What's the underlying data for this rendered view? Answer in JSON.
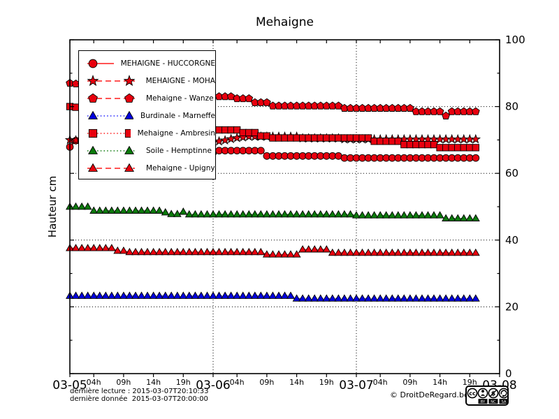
{
  "title": "Mehaigne",
  "ylabel": "Hauteur cm",
  "axis": {
    "ylim": [
      0,
      100
    ],
    "y_major_ticks": [
      0,
      20,
      40,
      60,
      80,
      100
    ],
    "y_minor_ticks": [
      10,
      30,
      50,
      70,
      90
    ],
    "grid_h_values": [
      20,
      40,
      60,
      80
    ],
    "grid_v_hours": [
      24,
      48
    ],
    "x_day_ticks": [
      {
        "hour": 0,
        "label": "03-05"
      },
      {
        "hour": 24,
        "label": "03-06"
      },
      {
        "hour": 48,
        "label": "03-07"
      },
      {
        "hour": 72,
        "label": "03-08"
      }
    ],
    "x_hour_ticks": [
      {
        "hour": 4,
        "label": "04h"
      },
      {
        "hour": 9,
        "label": "09h"
      },
      {
        "hour": 14,
        "label": "14h"
      },
      {
        "hour": 19,
        "label": "19h"
      },
      {
        "hour": 28,
        "label": "04h"
      },
      {
        "hour": 33,
        "label": "09h"
      },
      {
        "hour": 38,
        "label": "14h"
      },
      {
        "hour": 43,
        "label": "19h"
      },
      {
        "hour": 52,
        "label": "04h"
      },
      {
        "hour": 57,
        "label": "09h"
      },
      {
        "hour": 62,
        "label": "14h"
      },
      {
        "hour": 67,
        "label": "19h"
      }
    ]
  },
  "legend": {
    "position": "upper-left"
  },
  "chart_data": {
    "type": "line",
    "title": "Mehaigne",
    "xlabel": "",
    "ylabel": "Hauteur cm",
    "x_unit": "hours since 2015-03-05 00:00",
    "x_range_hours": [
      0,
      72
    ],
    "ylim": [
      0,
      100
    ],
    "grid": "dotted",
    "series": [
      {
        "name": "MEHAIGNE - HUCCORGNE",
        "marker": "circle",
        "linestyle": "solid",
        "color": "#e8000e",
        "line_color": "#ff1a1a",
        "values": [
          67.9,
          69.8,
          69.6,
          69.5,
          69.3,
          69.2,
          69.0,
          68.9,
          68.7,
          68.6,
          68.4,
          68.3,
          68.1,
          68.0,
          67.9,
          67.8,
          67.7,
          67.6,
          67.5,
          67.4,
          67.3,
          67.2,
          67.1,
          67.0,
          66.2,
          66.8,
          66.8,
          66.8,
          66.8,
          66.8,
          66.8,
          66.8,
          66.8,
          65.2,
          65.2,
          65.2,
          65.2,
          65.2,
          65.2,
          65.2,
          65.2,
          65.2,
          65.2,
          65.2,
          65.2,
          65.2,
          64.6,
          64.6,
          64.6,
          64.6,
          64.6,
          64.6,
          64.6,
          64.6,
          64.6,
          64.6,
          64.6,
          64.6,
          64.6,
          64.6,
          64.6,
          64.6,
          64.6,
          64.6,
          64.6,
          64.6,
          64.6,
          64.6,
          64.6
        ]
      },
      {
        "name": "MEHAIGNE - MOHA",
        "marker": "star",
        "linestyle": "dashed",
        "color": "#e8000e",
        "line_color": "#ff1a1a",
        "values": [
          70.0,
          69.9,
          69.8,
          69.8,
          69.7,
          69.6,
          69.6,
          69.5,
          69.4,
          69.4,
          69.3,
          69.3,
          69.2,
          69.2,
          69.1,
          69.1,
          69.0,
          69.0,
          68.9,
          68.9,
          68.9,
          68.8,
          68.8,
          68.8,
          69.3,
          69.6,
          69.9,
          70.3,
          70.6,
          70.8,
          71.0,
          71.0,
          71.0,
          71.0,
          71.0,
          71.0,
          71.0,
          71.0,
          71.0,
          70.5,
          70.5,
          70.5,
          70.5,
          70.5,
          70.5,
          70.5,
          70.2,
          70.2,
          70.2,
          70.2,
          70.2,
          70.2,
          70.2,
          70.2,
          70.2,
          70.2,
          70.2,
          70.2,
          70.2,
          70.2,
          70.2,
          70.2,
          70.2,
          70.2,
          70.2,
          70.2,
          70.2,
          70.2,
          70.2
        ]
      },
      {
        "name": "Mehaigne - Wanze",
        "marker": "pentagon",
        "linestyle": "dashed",
        "color": "#e8000e",
        "line_color": "#ff1a1a",
        "values": [
          87.0,
          86.8,
          86.6,
          86.4,
          86.2,
          86.0,
          85.8,
          85.6,
          85.4,
          85.2,
          85.0,
          84.9,
          84.7,
          84.6,
          84.4,
          84.3,
          84.2,
          84.1,
          84.0,
          83.9,
          83.8,
          83.7,
          83.6,
          83.5,
          83.0,
          83.0,
          83.0,
          83.0,
          82.4,
          82.4,
          82.4,
          81.2,
          81.2,
          81.2,
          80.2,
          80.2,
          80.2,
          80.2,
          80.2,
          80.2,
          80.2,
          80.2,
          80.2,
          80.2,
          80.2,
          80.2,
          79.5,
          79.5,
          79.5,
          79.5,
          79.5,
          79.5,
          79.5,
          79.5,
          79.5,
          79.5,
          79.5,
          79.5,
          78.5,
          78.5,
          78.5,
          78.5,
          78.5,
          77.2,
          78.5,
          78.5,
          78.5,
          78.5,
          78.5
        ]
      },
      {
        "name": "Burdinale - Marneffe",
        "marker": "triangle",
        "linestyle": "dotted",
        "color": "#0000dd",
        "line_color": "#2222ff",
        "values": [
          23.3,
          23.3,
          23.3,
          23.3,
          23.3,
          23.3,
          23.3,
          23.3,
          23.3,
          23.3,
          23.3,
          23.3,
          23.3,
          23.3,
          23.3,
          23.3,
          23.3,
          23.3,
          23.3,
          23.3,
          23.3,
          23.3,
          23.3,
          23.3,
          23.3,
          23.3,
          23.3,
          23.3,
          23.3,
          23.3,
          23.3,
          23.3,
          23.3,
          23.3,
          23.3,
          23.3,
          23.3,
          23.3,
          22.5,
          22.5,
          22.5,
          22.5,
          22.5,
          22.5,
          22.5,
          22.5,
          22.5,
          22.5,
          22.5,
          22.5,
          22.5,
          22.5,
          22.5,
          22.5,
          22.5,
          22.5,
          22.5,
          22.5,
          22.5,
          22.5,
          22.5,
          22.5,
          22.5,
          22.5,
          22.5,
          22.5,
          22.5,
          22.5,
          22.5
        ]
      },
      {
        "name": "Mehaigne - Ambresin",
        "marker": "square",
        "linestyle": "dotted",
        "color": "#e8000e",
        "line_color": "#ff1a1a",
        "values": [
          80.0,
          79.8,
          79.5,
          79.2,
          78.9,
          78.6,
          78.3,
          78.0,
          77.7,
          77.4,
          77.1,
          76.8,
          76.5,
          76.2,
          75.9,
          75.6,
          75.3,
          75.0,
          74.8,
          74.6,
          74.4,
          74.2,
          74.1,
          74.0,
          73.0,
          73.0,
          73.0,
          73.0,
          73.0,
          72.2,
          72.2,
          72.2,
          71.2,
          71.2,
          70.6,
          70.6,
          70.6,
          70.6,
          70.6,
          70.6,
          70.6,
          70.6,
          70.6,
          70.6,
          70.6,
          70.6,
          70.6,
          70.6,
          70.6,
          70.6,
          70.6,
          69.6,
          69.6,
          69.6,
          69.6,
          69.6,
          68.6,
          68.6,
          68.6,
          68.6,
          68.6,
          68.6,
          67.7,
          67.7,
          67.7,
          67.7,
          67.7,
          67.7,
          67.7
        ]
      },
      {
        "name": "Soile - Hemptinne",
        "marker": "triangle",
        "linestyle": "dotted",
        "color": "#0b7a0b",
        "line_color": "#0b7a0b",
        "values": [
          50.0,
          50.0,
          50.0,
          50.0,
          48.8,
          48.8,
          48.8,
          48.8,
          48.8,
          48.8,
          48.8,
          48.8,
          48.8,
          48.8,
          48.8,
          48.8,
          48.3,
          47.8,
          47.8,
          48.5,
          47.7,
          47.7,
          47.7,
          47.7,
          47.7,
          47.7,
          47.7,
          47.7,
          47.7,
          47.7,
          47.7,
          47.7,
          47.7,
          47.7,
          47.7,
          47.7,
          47.7,
          47.7,
          47.7,
          47.7,
          47.7,
          47.7,
          47.7,
          47.7,
          47.7,
          47.7,
          47.7,
          47.7,
          47.4,
          47.4,
          47.4,
          47.4,
          47.4,
          47.4,
          47.4,
          47.4,
          47.4,
          47.4,
          47.4,
          47.4,
          47.4,
          47.4,
          47.4,
          46.5,
          46.5,
          46.5,
          46.5,
          46.5,
          46.5
        ]
      },
      {
        "name": "Mehaigne - Upigny",
        "marker": "triangle",
        "linestyle": "dashed",
        "color": "#e8000e",
        "line_color": "#ff1a1a",
        "values": [
          37.6,
          37.6,
          37.6,
          37.6,
          37.6,
          37.6,
          37.6,
          37.6,
          36.8,
          36.8,
          36.4,
          36.4,
          36.4,
          36.4,
          36.4,
          36.4,
          36.4,
          36.4,
          36.4,
          36.4,
          36.4,
          36.4,
          36.4,
          36.4,
          36.4,
          36.4,
          36.4,
          36.4,
          36.4,
          36.4,
          36.4,
          36.4,
          36.4,
          35.7,
          35.7,
          35.7,
          35.7,
          35.7,
          35.7,
          37.2,
          37.2,
          37.2,
          37.2,
          37.2,
          36.2,
          36.2,
          36.2,
          36.2,
          36.2,
          36.2,
          36.2,
          36.2,
          36.2,
          36.2,
          36.2,
          36.2,
          36.2,
          36.2,
          36.2,
          36.2,
          36.2,
          36.2,
          36.2,
          36.2,
          36.2,
          36.2,
          36.2,
          36.2,
          36.2
        ]
      }
    ]
  },
  "footer": {
    "line1": "dernière lecture : 2015-03-07T20:10:33",
    "line2": "dernière donnée  2015-03-07T20:00:00",
    "credit": "© DroitDeRegard.be",
    "badge": {
      "cc_text": "cc",
      "labels": [
        "BY",
        "NC",
        "SA"
      ]
    }
  }
}
